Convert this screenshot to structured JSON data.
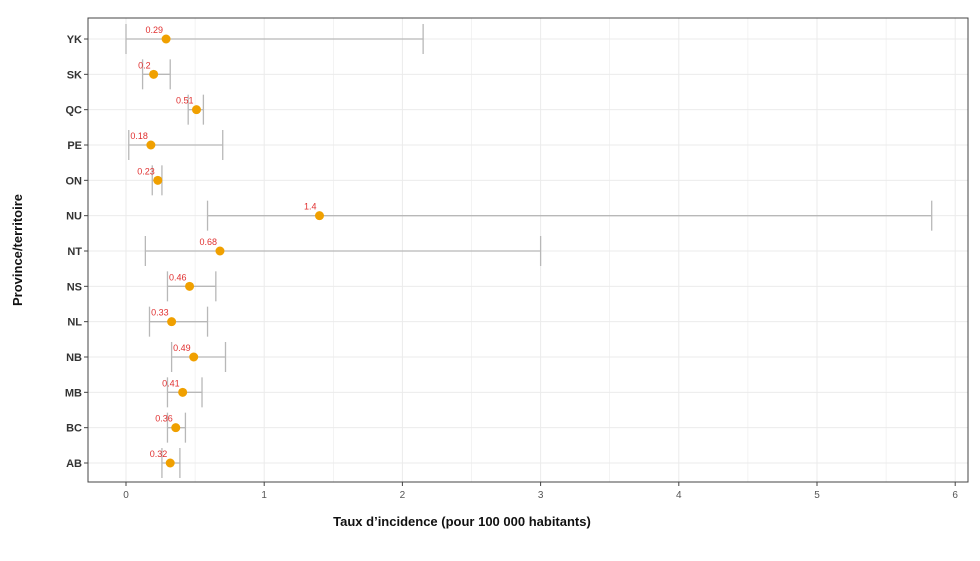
{
  "chart_data": {
    "type": "scatter",
    "subtype": "point-with-error-bars",
    "xlabel": "Taux d’incidence (pour 100 000 habitants)",
    "ylabel": "Province/territoire",
    "xlim": [
      0,
      6
    ],
    "xticks": [
      "0",
      "1",
      "2",
      "3",
      "4",
      "5",
      "6"
    ],
    "grid": true,
    "categories": [
      "YK",
      "SK",
      "QC",
      "PE",
      "ON",
      "NU",
      "NT",
      "NS",
      "NL",
      "NB",
      "MB",
      "BC",
      "AB"
    ],
    "values": [
      0.29,
      0.2,
      0.51,
      0.18,
      0.23,
      1.4,
      0.68,
      0.46,
      0.33,
      0.49,
      0.41,
      0.36,
      0.32
    ],
    "labels": [
      "0.29",
      "0.2",
      "0.51",
      "0.18",
      "0.23",
      "1.4",
      "0.68",
      "0.46",
      "0.33",
      "0.49",
      "0.41",
      "0.36",
      "0.32"
    ],
    "ci_low": [
      0.0,
      0.12,
      0.45,
      0.02,
      0.19,
      0.59,
      0.14,
      0.3,
      0.17,
      0.33,
      0.3,
      0.3,
      0.26
    ],
    "ci_high": [
      2.15,
      0.32,
      0.56,
      0.7,
      0.26,
      5.83,
      3.0,
      0.65,
      0.59,
      0.72,
      0.55,
      0.43,
      0.39
    ],
    "colors": {
      "point": "#f0a000",
      "label": "#e03030",
      "errorbar": "#b8b8b8",
      "grid": "#ebebeb"
    }
  }
}
